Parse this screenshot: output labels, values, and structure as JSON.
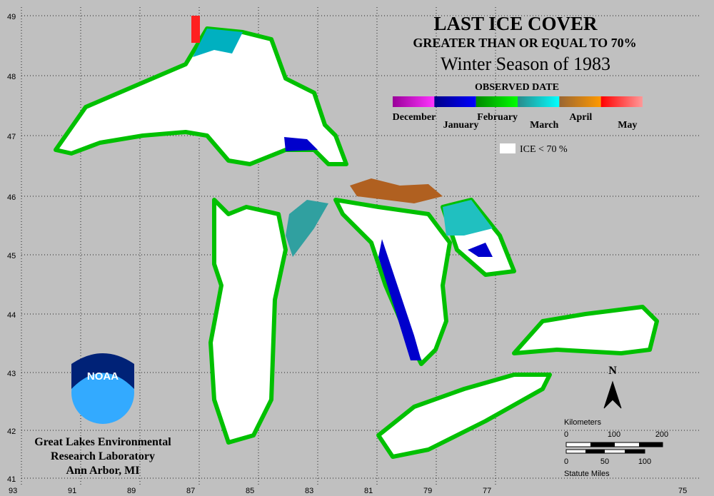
{
  "header": {
    "title": "LAST ICE COVER",
    "subtitle": "GREATER THAN OR EQUAL TO 70%",
    "season": "Winter Season of 1983"
  },
  "legend": {
    "title": "OBSERVED DATE",
    "months": [
      {
        "label": "December",
        "colors": [
          "#990099",
          "#ff33ff"
        ]
      },
      {
        "label": "January",
        "colors": [
          "#000088",
          "#0000ff"
        ]
      },
      {
        "label": "February",
        "colors": [
          "#008800",
          "#00ff00"
        ]
      },
      {
        "label": "March",
        "colors": [
          "#2a8a8a",
          "#00ffff"
        ]
      },
      {
        "label": "April",
        "colors": [
          "#996633",
          "#ff9900"
        ]
      },
      {
        "label": "May",
        "colors": [
          "#ff0000",
          "#ff9999"
        ]
      }
    ],
    "ice_label": "ICE < 70 %"
  },
  "grid": {
    "latitudes": [
      "49",
      "48",
      "47",
      "46",
      "45",
      "44",
      "43",
      "42",
      "41"
    ],
    "longitudes": [
      "93",
      "91",
      "89",
      "87",
      "85",
      "83",
      "81",
      "79",
      "77",
      "75"
    ]
  },
  "scale": {
    "kilometers_label": "Kilometers",
    "km_ticks": [
      "0",
      "100",
      "200"
    ],
    "mile_ticks": [
      "0",
      "50",
      "100"
    ],
    "miles_label": "Statute Miles"
  },
  "north": "N",
  "logo": "NOAA",
  "credit": [
    "Great Lakes Environmental",
    "Research Laboratory",
    "Ann Arbor, MI"
  ]
}
